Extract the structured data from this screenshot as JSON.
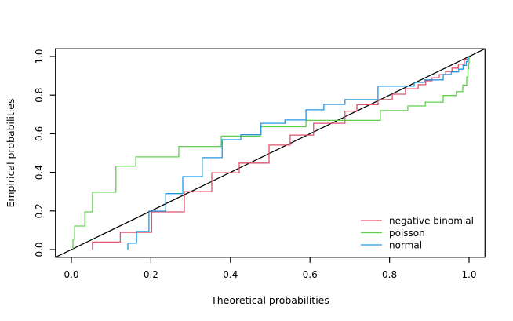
{
  "figure": {
    "background": "#ffffff",
    "plot_border_color": "#000000"
  },
  "chart_data": {
    "type": "line",
    "subtype": "step-pp-plot",
    "title": "",
    "xlabel": "Theoretical probabilities",
    "ylabel": "Empirical probabilities",
    "xlim": [
      0,
      1
    ],
    "ylim": [
      0,
      1
    ],
    "grid": false,
    "legend_position": "bottom-right",
    "xticks": {
      "values": [
        0,
        0.2,
        0.4,
        0.6,
        0.8,
        1.0
      ],
      "labels": [
        "0.0",
        "0.2",
        "0.4",
        "0.6",
        "0.8",
        "1.0"
      ]
    },
    "yticks": {
      "values": [
        0,
        0.2,
        0.4,
        0.6,
        0.8,
        1.0
      ],
      "labels": [
        "0.0",
        "0.2",
        "0.4",
        "0.6",
        "0.8",
        "1.0"
      ]
    },
    "reference_line": {
      "name": "identity",
      "from": [
        0,
        0
      ],
      "to": [
        1,
        1
      ],
      "color": "#000000"
    },
    "series": [
      {
        "name": "negative binomial",
        "color": "#DF536B",
        "points": [
          [
            0.053,
            0
          ],
          [
            0.053,
            0.039
          ],
          [
            0.123,
            0.039
          ],
          [
            0.123,
            0.089
          ],
          [
            0.202,
            0.089
          ],
          [
            0.202,
            0.195
          ],
          [
            0.284,
            0.195
          ],
          [
            0.284,
            0.3
          ],
          [
            0.353,
            0.3
          ],
          [
            0.353,
            0.398
          ],
          [
            0.422,
            0.398
          ],
          [
            0.422,
            0.448
          ],
          [
            0.497,
            0.448
          ],
          [
            0.497,
            0.541
          ],
          [
            0.55,
            0.541
          ],
          [
            0.55,
            0.593
          ],
          [
            0.609,
            0.593
          ],
          [
            0.609,
            0.654
          ],
          [
            0.688,
            0.654
          ],
          [
            0.688,
            0.717
          ],
          [
            0.718,
            0.717
          ],
          [
            0.718,
            0.751
          ],
          [
            0.771,
            0.751
          ],
          [
            0.771,
            0.777
          ],
          [
            0.807,
            0.777
          ],
          [
            0.807,
            0.805
          ],
          [
            0.84,
            0.805
          ],
          [
            0.84,
            0.833
          ],
          [
            0.872,
            0.833
          ],
          [
            0.872,
            0.854
          ],
          [
            0.891,
            0.854
          ],
          [
            0.891,
            0.874
          ],
          [
            0.907,
            0.874
          ],
          [
            0.907,
            0.89
          ],
          [
            0.925,
            0.89
          ],
          [
            0.925,
            0.906
          ],
          [
            0.941,
            0.906
          ],
          [
            0.941,
            0.922
          ],
          [
            0.957,
            0.922
          ],
          [
            0.957,
            0.94
          ],
          [
            0.973,
            0.94
          ],
          [
            0.973,
            0.96
          ],
          [
            0.988,
            0.96
          ],
          [
            0.988,
            0.985
          ],
          [
            1.0,
            0.985
          ],
          [
            1.0,
            1.0
          ]
        ]
      },
      {
        "name": "poisson",
        "color": "#61D04F",
        "points": [
          [
            0.004,
            0
          ],
          [
            0.004,
            0.053
          ],
          [
            0.008,
            0.053
          ],
          [
            0.008,
            0.122
          ],
          [
            0.034,
            0.122
          ],
          [
            0.034,
            0.195
          ],
          [
            0.053,
            0.195
          ],
          [
            0.053,
            0.297
          ],
          [
            0.112,
            0.297
          ],
          [
            0.112,
            0.432
          ],
          [
            0.162,
            0.432
          ],
          [
            0.162,
            0.48
          ],
          [
            0.205,
            0.48
          ],
          [
            0.205,
            0.48
          ],
          [
            0.27,
            0.48
          ],
          [
            0.27,
            0.534
          ],
          [
            0.377,
            0.534
          ],
          [
            0.377,
            0.588
          ],
          [
            0.475,
            0.588
          ],
          [
            0.475,
            0.636
          ],
          [
            0.59,
            0.636
          ],
          [
            0.59,
            0.669
          ],
          [
            0.777,
            0.669
          ],
          [
            0.777,
            0.72
          ],
          [
            0.846,
            0.72
          ],
          [
            0.846,
            0.744
          ],
          [
            0.89,
            0.744
          ],
          [
            0.89,
            0.764
          ],
          [
            0.935,
            0.764
          ],
          [
            0.935,
            0.798
          ],
          [
            0.968,
            0.798
          ],
          [
            0.968,
            0.818
          ],
          [
            0.984,
            0.818
          ],
          [
            0.984,
            0.852
          ],
          [
            0.994,
            0.852
          ],
          [
            0.994,
            0.893
          ],
          [
            0.997,
            0.893
          ],
          [
            0.997,
            0.935
          ],
          [
            0.999,
            0.935
          ],
          [
            0.999,
            0.967
          ],
          [
            1.0,
            0.967
          ],
          [
            1.0,
            1.0
          ]
        ]
      },
      {
        "name": "normal",
        "color": "#2297E6",
        "points": [
          [
            0.142,
            0
          ],
          [
            0.142,
            0.033
          ],
          [
            0.164,
            0.033
          ],
          [
            0.164,
            0.094
          ],
          [
            0.195,
            0.094
          ],
          [
            0.195,
            0.199
          ],
          [
            0.237,
            0.199
          ],
          [
            0.237,
            0.29
          ],
          [
            0.28,
            0.29
          ],
          [
            0.28,
            0.378
          ],
          [
            0.329,
            0.378
          ],
          [
            0.329,
            0.476
          ],
          [
            0.379,
            0.476
          ],
          [
            0.379,
            0.569
          ],
          [
            0.426,
            0.569
          ],
          [
            0.426,
            0.595
          ],
          [
            0.477,
            0.595
          ],
          [
            0.477,
            0.654
          ],
          [
            0.537,
            0.654
          ],
          [
            0.537,
            0.671
          ],
          [
            0.59,
            0.671
          ],
          [
            0.59,
            0.724
          ],
          [
            0.635,
            0.724
          ],
          [
            0.635,
            0.752
          ],
          [
            0.688,
            0.752
          ],
          [
            0.688,
            0.777
          ],
          [
            0.771,
            0.777
          ],
          [
            0.771,
            0.846
          ],
          [
            0.862,
            0.846
          ],
          [
            0.862,
            0.866
          ],
          [
            0.888,
            0.866
          ],
          [
            0.888,
            0.879
          ],
          [
            0.935,
            0.879
          ],
          [
            0.935,
            0.907
          ],
          [
            0.955,
            0.907
          ],
          [
            0.955,
            0.92
          ],
          [
            0.974,
            0.92
          ],
          [
            0.974,
            0.934
          ],
          [
            0.985,
            0.934
          ],
          [
            0.985,
            0.954
          ],
          [
            0.993,
            0.954
          ],
          [
            0.993,
            0.974
          ],
          [
            0.997,
            0.974
          ],
          [
            0.997,
            1.0
          ],
          [
            1.0,
            1.0
          ]
        ]
      }
    ]
  }
}
